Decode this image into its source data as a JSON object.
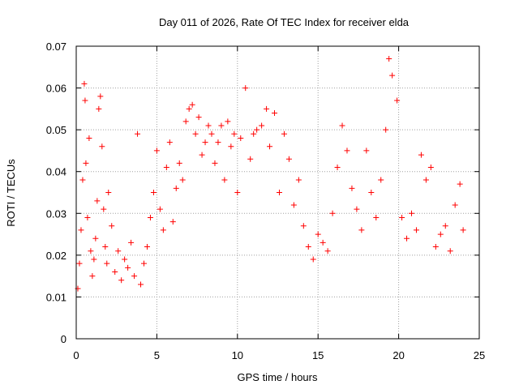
{
  "chart_data": {
    "type": "scatter",
    "title": "Day 011 of 2026, Rate Of TEC Index for receiver elda",
    "xlabel": "GPS time / hours",
    "ylabel": "ROTI / TECUs",
    "xlim": [
      0,
      25
    ],
    "ylim": [
      0,
      0.07
    ],
    "xticks": [
      "0",
      "5",
      "10",
      "15",
      "20",
      "25"
    ],
    "yticks": [
      "0",
      "0.01",
      "0.02",
      "0.03",
      "0.04",
      "0.05",
      "0.06",
      "0.07"
    ],
    "grid": true,
    "marker": "+",
    "series_color": "#ff0000",
    "series": [
      {
        "x": [
          0.1,
          0.2,
          0.3,
          0.4,
          0.5,
          0.55,
          0.6,
          0.7,
          0.8,
          0.9,
          1.0,
          1.1,
          1.2,
          1.3,
          1.4,
          1.5,
          1.6,
          1.7,
          1.8,
          1.9,
          2.0,
          2.2,
          2.4,
          2.6,
          2.8,
          3.0,
          3.2,
          3.4,
          3.6,
          3.8,
          4.0,
          4.2,
          4.4,
          4.6,
          4.8,
          5.0,
          5.2,
          5.4,
          5.6,
          5.8,
          6.0,
          6.2,
          6.4,
          6.6,
          6.8,
          7.0,
          7.2,
          7.4,
          7.6,
          7.8,
          8.0,
          8.2,
          8.4,
          8.6,
          8.8,
          9.0,
          9.2,
          9.4,
          9.6,
          9.8,
          10.0,
          10.2,
          10.5,
          10.8,
          11.0,
          11.2,
          11.5,
          11.8,
          12.0,
          12.3,
          12.6,
          12.9,
          13.2,
          13.5,
          13.8,
          14.1,
          14.4,
          14.7,
          15.0,
          15.3,
          15.6,
          15.9,
          16.2,
          16.5,
          16.8,
          17.1,
          17.4,
          17.7,
          18.0,
          18.3,
          18.6,
          18.9,
          19.2,
          19.4,
          19.6,
          19.9,
          20.2,
          20.5,
          20.8,
          21.1,
          21.4,
          21.7,
          22.0,
          22.3,
          22.6,
          22.9,
          23.2,
          23.5,
          23.8,
          24.0
        ],
        "y": [
          0.012,
          0.018,
          0.026,
          0.038,
          0.061,
          0.057,
          0.042,
          0.029,
          0.048,
          0.021,
          0.015,
          0.019,
          0.024,
          0.033,
          0.055,
          0.058,
          0.046,
          0.031,
          0.022,
          0.018,
          0.035,
          0.027,
          0.016,
          0.021,
          0.014,
          0.019,
          0.017,
          0.023,
          0.015,
          0.049,
          0.013,
          0.018,
          0.022,
          0.029,
          0.035,
          0.045,
          0.031,
          0.026,
          0.041,
          0.047,
          0.028,
          0.036,
          0.042,
          0.038,
          0.052,
          0.055,
          0.056,
          0.049,
          0.053,
          0.044,
          0.047,
          0.051,
          0.049,
          0.042,
          0.047,
          0.051,
          0.038,
          0.052,
          0.046,
          0.049,
          0.035,
          0.048,
          0.06,
          0.043,
          0.049,
          0.05,
          0.051,
          0.055,
          0.046,
          0.054,
          0.035,
          0.049,
          0.043,
          0.032,
          0.038,
          0.027,
          0.022,
          0.019,
          0.025,
          0.023,
          0.021,
          0.03,
          0.041,
          0.051,
          0.045,
          0.036,
          0.031,
          0.026,
          0.045,
          0.035,
          0.029,
          0.038,
          0.05,
          0.067,
          0.063,
          0.057,
          0.029,
          0.024,
          0.03,
          0.026,
          0.044,
          0.038,
          0.041,
          0.022,
          0.025,
          0.027,
          0.021,
          0.032,
          0.037,
          0.026
        ]
      }
    ]
  }
}
